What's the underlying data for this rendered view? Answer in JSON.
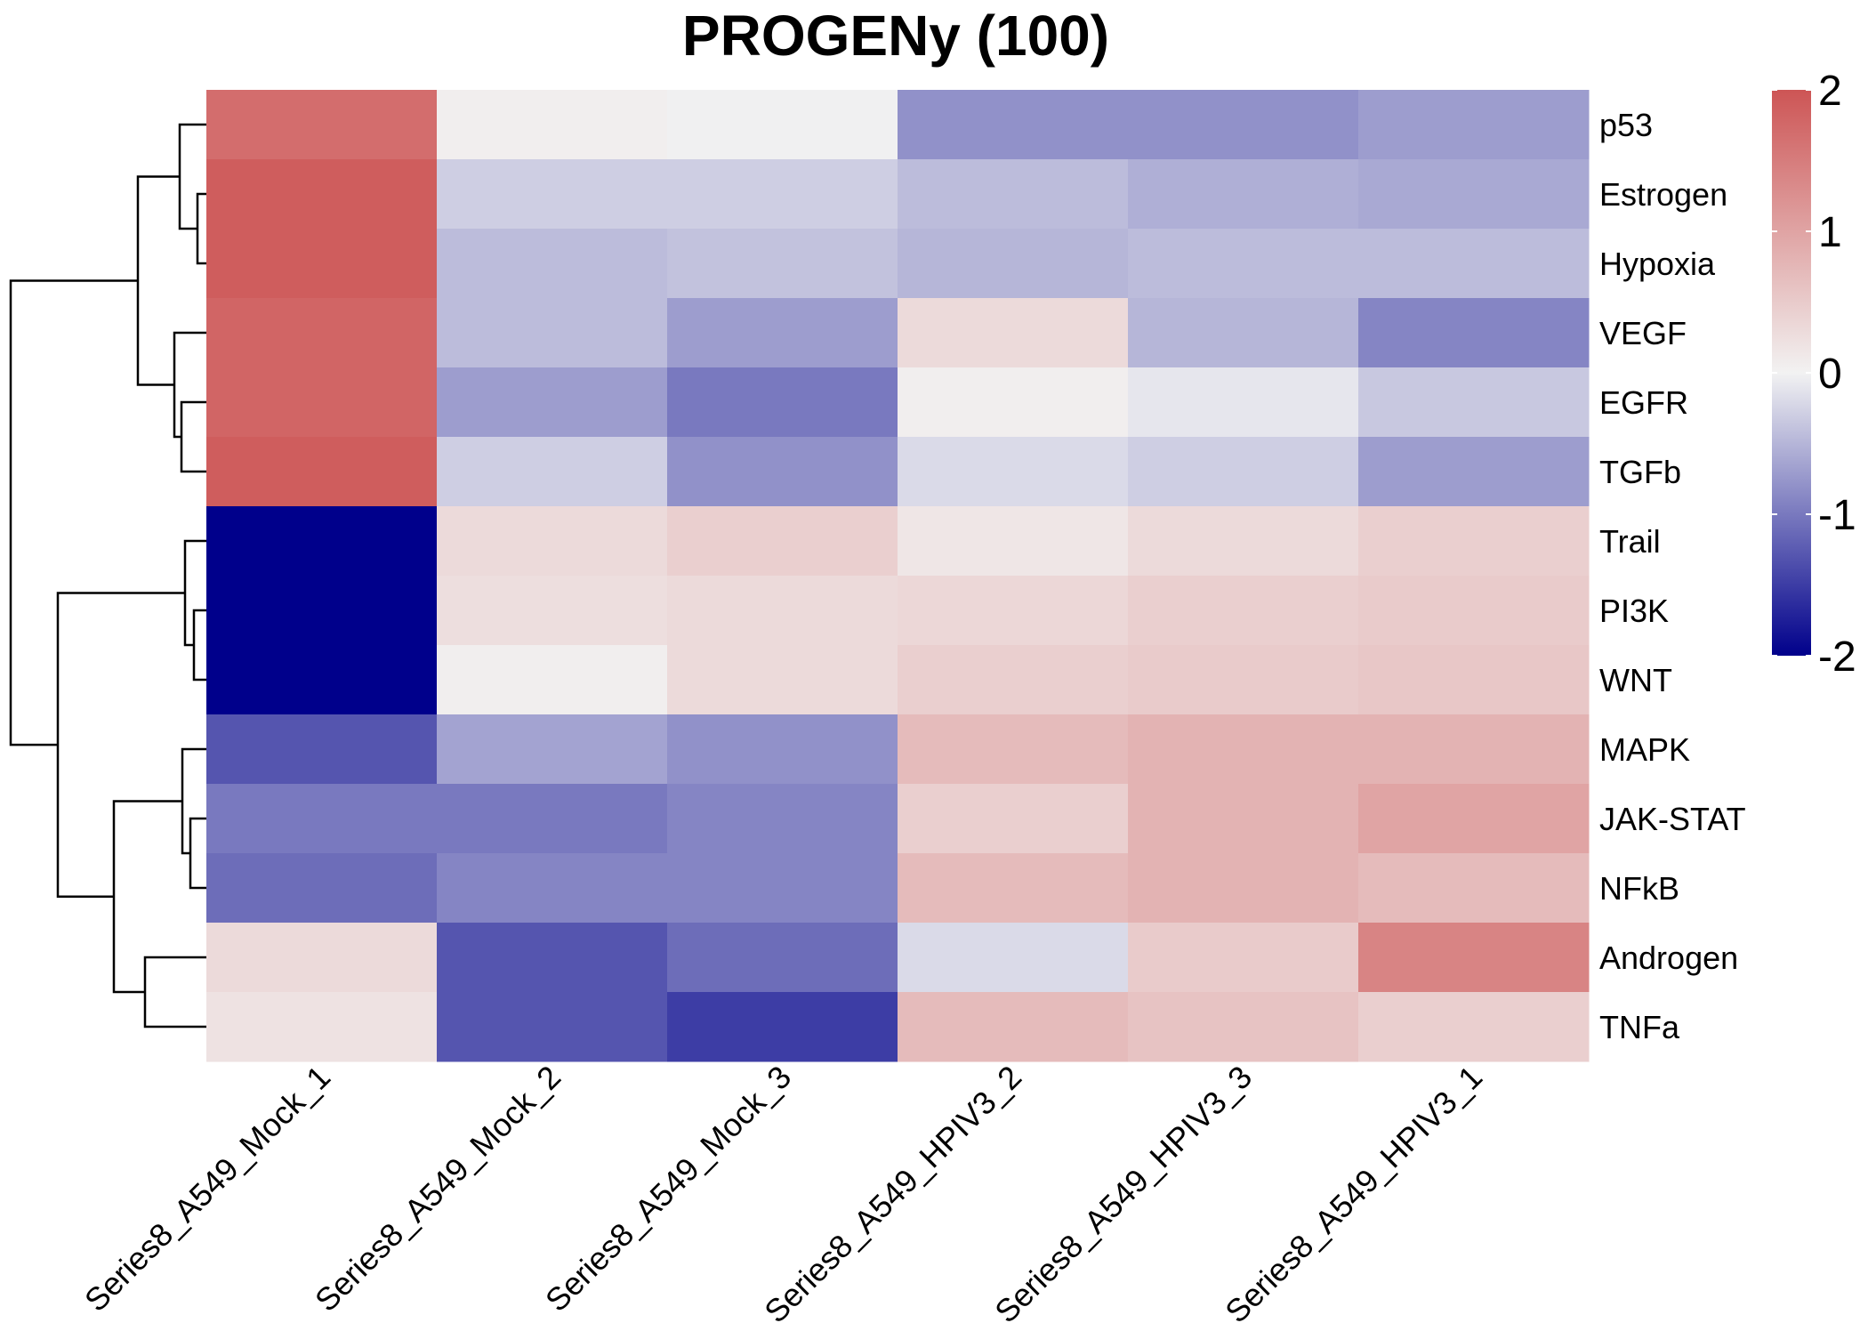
{
  "chart_data": {
    "type": "heatmap",
    "title": "PROGENy (100)",
    "columns": [
      "Series8_A549_Mock_1",
      "Series8_A549_Mock_2",
      "Series8_A549_Mock_3",
      "Series8_A549_HPIV3_2",
      "Series8_A549_HPIV3_3",
      "Series8_A549_HPIV3_1"
    ],
    "rows": [
      "p53",
      "Estrogen",
      "Hypoxia",
      "VEGF",
      "EGFR",
      "TGFb",
      "Trail",
      "PI3K",
      "WNT",
      "MAPK",
      "JAK-STAT",
      "NFkB",
      "Androgen",
      "TNFa"
    ],
    "values": [
      [
        1.7,
        0.05,
        -0.02,
        -0.8,
        -0.8,
        -0.7
      ],
      [
        1.9,
        -0.3,
        -0.3,
        -0.45,
        -0.55,
        -0.6
      ],
      [
        1.9,
        -0.45,
        -0.4,
        -0.5,
        -0.45,
        -0.45
      ],
      [
        1.8,
        -0.45,
        -0.7,
        0.3,
        -0.5,
        -0.9
      ],
      [
        1.8,
        -0.7,
        -1.0,
        0.05,
        -0.1,
        -0.35
      ],
      [
        1.9,
        -0.3,
        -0.8,
        -0.2,
        -0.3,
        -0.7
      ],
      [
        -2.0,
        0.3,
        0.45,
        0.15,
        0.3,
        0.45
      ],
      [
        -2.0,
        0.25,
        0.3,
        0.35,
        0.45,
        0.5
      ],
      [
        -2.0,
        0.05,
        0.3,
        0.45,
        0.5,
        0.55
      ],
      [
        -1.3,
        -0.65,
        -0.8,
        0.7,
        0.8,
        0.8
      ],
      [
        -1.0,
        -1.0,
        -0.9,
        0.45,
        0.8,
        1.0
      ],
      [
        -1.1,
        -0.9,
        -0.9,
        0.7,
        0.8,
        0.7
      ],
      [
        0.3,
        -1.3,
        -1.1,
        -0.2,
        0.5,
        1.4
      ],
      [
        0.2,
        -1.3,
        -1.5,
        0.7,
        0.6,
        0.45
      ]
    ],
    "colorbar": {
      "ticks": [
        2,
        1,
        0,
        -1,
        -2
      ],
      "tick_labels": [
        "2",
        "1",
        "0",
        "-1",
        "-2"
      ],
      "range": [
        -2,
        2
      ],
      "colors": {
        "low": "#00008b",
        "mid": "#f2f2f2",
        "high": "#cd5555"
      }
    },
    "row_dendrogram": true,
    "xlabel": "",
    "ylabel": ""
  }
}
